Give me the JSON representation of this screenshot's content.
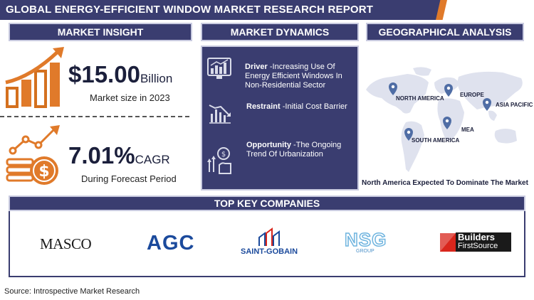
{
  "title": "GLOBAL ENERGY-EFFICIENT WINDOW MARKET RESEARCH  REPORT",
  "sections": {
    "insight": "MARKET INSIGHT",
    "dynamics": "MARKET DYNAMICS",
    "geo": "GEOGRAPHICAL ANALYSIS",
    "companies": "TOP KEY COMPANIES"
  },
  "insight": {
    "market_size_value": "$15.00",
    "market_size_unit": "Billion",
    "market_size_caption": "Market size in 2023",
    "cagr_value": "7.01%",
    "cagr_unit": "CAGR",
    "cagr_caption": "During Forecast Period"
  },
  "dynamics": {
    "driver_label": "Driver",
    "driver_text": " -Increasing Use Of Energy Efficient Windows In Non-Residential Sector",
    "restraint_label": "Restraint",
    "restraint_text": " -Initial Cost Barrier",
    "opportunity_label": "Opportunity",
    "opportunity_text": " -The Ongoing Trend Of Urbanization"
  },
  "geo": {
    "regions": [
      "NORTH AMERICA",
      "EUROPE",
      "ASIA PACIFIC",
      "MEA",
      "SOUTH AMERICA"
    ],
    "caption": "North America Expected To Dominate The Market"
  },
  "companies": {
    "masco": "MASCO",
    "agc": "AGC",
    "saint_gobain": "SAINT-GOBAIN",
    "nsg": "NSG",
    "nsg_sub": "GROUP",
    "builders_top": "Builders",
    "builders_bottom": "FirstSource"
  },
  "source": "Source: Introspective Market Research",
  "colors": {
    "navy": "#3a3d70",
    "orange": "#e07a2a",
    "map_gray": "#dfe2ee"
  },
  "icons": [
    "bar-growth-icon",
    "dollar-coins-icon",
    "monitor-chart-icon",
    "decline-chart-icon",
    "hand-growth-icon",
    "map-pin-icon"
  ]
}
